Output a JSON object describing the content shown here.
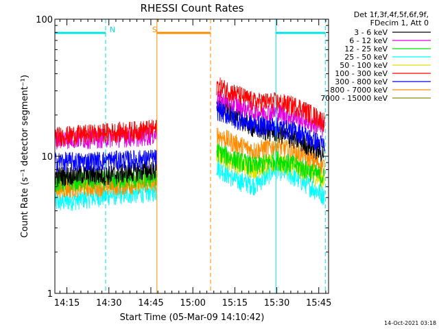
{
  "chart_data": {
    "type": "line",
    "title": "RHESSI Count Rates",
    "xlabel": "Start Time (05-Mar-09 14:10:42)",
    "ylabel": "Count Rate (s⁻¹ detector segment⁻¹)",
    "yscale": "log",
    "ylim": [
      1,
      100
    ],
    "xlim": [
      "14:10:42",
      "15:48:30"
    ],
    "x_ticks": [
      "14:15",
      "14:30",
      "14:45",
      "15:00",
      "15:15",
      "15:30",
      "15:45"
    ],
    "y_ticks": [
      "1",
      "10",
      "100"
    ],
    "legend_header": [
      "Det 1f,3f,4f,5f,6f,9f,",
      "FDecim 1, Att 0"
    ],
    "legend_position": "top-right, outside plot",
    "data_gap": [
      "14:47:10",
      "15:08:30"
    ],
    "series": [
      {
        "name": "3 - 6 keV",
        "color": "#000000",
        "x": [
          "14:10:42",
          "14:20",
          "14:30",
          "14:40",
          "14:47",
          "15:08:30",
          "15:15",
          "15:22",
          "15:30",
          "15:38",
          "15:47"
        ],
        "y": [
          7.2,
          7.4,
          7.3,
          7.8,
          8.0,
          24,
          20,
          16,
          15,
          13,
          10.5
        ]
      },
      {
        "name": "6 - 12 keV",
        "color": "#e100e1",
        "x": [
          "14:10:42",
          "14:20",
          "14:30",
          "14:40",
          "14:47",
          "15:08:30",
          "15:15",
          "15:22",
          "15:30",
          "15:38",
          "15:47"
        ],
        "y": [
          13.5,
          13.5,
          13.8,
          14,
          14.5,
          26,
          24,
          21,
          21,
          19,
          16
        ]
      },
      {
        "name": "12 - 25 keV",
        "color": "#00e100",
        "x": [
          "14:10:42",
          "14:20",
          "14:30",
          "14:40",
          "14:47",
          "15:08:30",
          "15:15",
          "15:22",
          "15:30",
          "15:38",
          "15:47"
        ],
        "y": [
          6.5,
          6.7,
          6.8,
          6.9,
          7.0,
          11,
          9.5,
          8.5,
          9.5,
          8.5,
          7.0
        ]
      },
      {
        "name": "25 - 50 keV",
        "color": "#00ffff",
        "x": [
          "14:10:42",
          "14:20",
          "14:30",
          "14:40",
          "14:47",
          "15:08:30",
          "15:15",
          "15:22",
          "15:30",
          "15:38",
          "15:47"
        ],
        "y": [
          4.6,
          4.9,
          5.2,
          5.4,
          5.6,
          8.5,
          6.8,
          6.2,
          8.2,
          6.8,
          5.2
        ]
      },
      {
        "name": "50 - 100 keV",
        "color": "#e1e100",
        "x": [
          "14:10:42",
          "14:20",
          "14:30",
          "14:40",
          "14:47",
          "15:08:30",
          "15:15",
          "15:22",
          "15:30",
          "15:38",
          "15:47"
        ],
        "y": [
          6.3,
          6.5,
          6.6,
          6.7,
          6.8,
          10.5,
          9,
          8.2,
          9,
          8.2,
          6.8
        ]
      },
      {
        "name": "100 - 300 keV",
        "color": "#ff0000",
        "x": [
          "14:10:42",
          "14:20",
          "14:30",
          "14:40",
          "14:47",
          "15:08:30",
          "15:15",
          "15:22",
          "15:30",
          "15:38",
          "15:47"
        ],
        "y": [
          14,
          14.5,
          15,
          15.5,
          16,
          33,
          29,
          25,
          25,
          23,
          18
        ]
      },
      {
        "name": "300 - 800 keV",
        "color": "#0000ff",
        "x": [
          "14:10:42",
          "14:20",
          "14:30",
          "14:40",
          "14:47",
          "15:08:30",
          "15:15",
          "15:22",
          "15:30",
          "15:38",
          "15:47"
        ],
        "y": [
          9.2,
          9.2,
          9.4,
          9.5,
          9.7,
          22,
          19,
          17,
          16.5,
          15,
          12
        ]
      },
      {
        "name": "800 - 7000 keV",
        "color": "#ff8c00",
        "x": [
          "14:10:42",
          "14:20",
          "14:30",
          "14:40",
          "14:47",
          "15:08:30",
          "15:15",
          "15:22",
          "15:30",
          "15:38",
          "15:47"
        ],
        "y": [
          5.8,
          6.0,
          6.1,
          6.3,
          6.5,
          14.5,
          12.5,
          11,
          12,
          10.5,
          8.5
        ]
      },
      {
        "name": "7000 - 15000 keV",
        "color": "#8b8b00",
        "x": [],
        "y": []
      }
    ],
    "markers": [
      {
        "label": "N",
        "color": "#00e1e1",
        "type": "night",
        "bars": [
          [
            "14:10:42",
            "14:28:50"
          ],
          [
            "15:29:40",
            "15:47:20"
          ]
        ],
        "starts": [
          "14:10:42",
          "15:29:40"
        ],
        "ends": [
          "14:28:50",
          "15:47:20"
        ]
      },
      {
        "label": "S",
        "color": "#ff8c00",
        "type": "saa",
        "bars": [
          [
            "14:47:10",
            "15:06:20"
          ]
        ],
        "starts": [
          "14:47:10"
        ],
        "ends": [
          "15:06:20"
        ]
      }
    ]
  },
  "timestamp": "14-Oct-2021 03:18"
}
